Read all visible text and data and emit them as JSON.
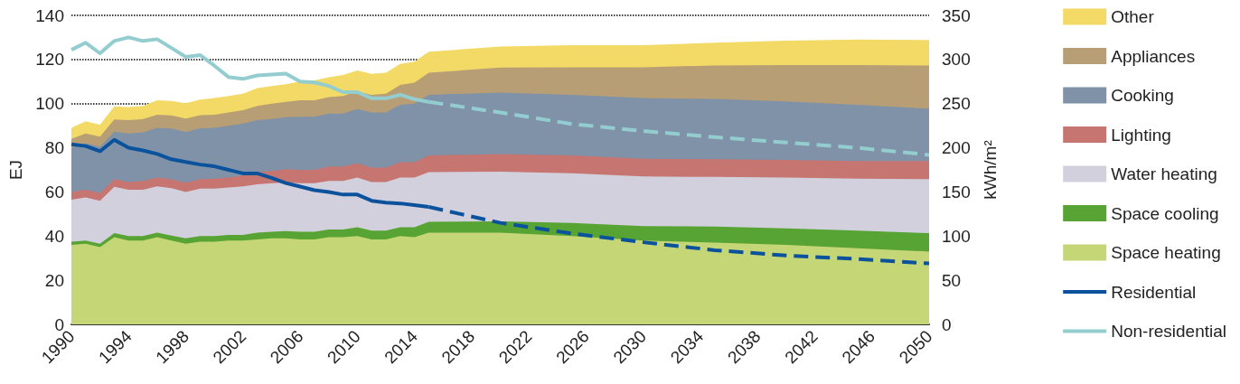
{
  "chart_data": {
    "type": "area",
    "stacked": true,
    "ylabel": "EJ",
    "y2label": "kWh/m²",
    "x": [
      1990,
      1991,
      1992,
      1993,
      1994,
      1995,
      1996,
      1997,
      1998,
      1999,
      2000,
      2001,
      2002,
      2003,
      2004,
      2005,
      2006,
      2007,
      2008,
      2009,
      2010,
      2011,
      2012,
      2013,
      2014,
      2015,
      2020,
      2025,
      2030,
      2035,
      2040,
      2045,
      2050
    ],
    "xlim": [
      1990,
      2050
    ],
    "xticks": [
      1990,
      1994,
      1998,
      2002,
      2006,
      2010,
      2014,
      2018,
      2022,
      2026,
      2030,
      2034,
      2038,
      2042,
      2046,
      2050
    ],
    "ylim": [
      0,
      140
    ],
    "yticks": [
      0,
      20,
      40,
      60,
      80,
      100,
      120,
      140
    ],
    "y2lim": [
      0,
      350
    ],
    "y2ticks": [
      0,
      50,
      100,
      150,
      200,
      250,
      300,
      350
    ],
    "grid": "y",
    "legend": "right",
    "series": [
      {
        "name": "Space heating",
        "color": "#c5d677",
        "values": [
          36,
          36.5,
          35,
          39.5,
          38,
          38,
          39.5,
          38,
          36.5,
          37.5,
          37.5,
          38,
          38,
          38.5,
          39,
          39,
          38.5,
          38.5,
          39.5,
          39.5,
          40,
          38.5,
          38.5,
          40,
          39.5,
          41.5,
          41.5,
          40,
          38,
          37,
          36,
          34.5,
          33
        ]
      },
      {
        "name": "Space cooling",
        "color": "#57a333",
        "values": [
          1.5,
          1.5,
          1.5,
          1.8,
          2,
          2,
          2,
          2.2,
          2.5,
          2.5,
          2.5,
          2.5,
          2.5,
          3,
          3,
          3.3,
          3.5,
          3.5,
          3.5,
          3.5,
          4,
          4,
          4,
          4,
          4.5,
          5,
          5.2,
          6,
          6.5,
          7.3,
          7.5,
          8,
          8.3
        ]
      },
      {
        "name": "Water heating",
        "color": "#d2d0dc",
        "values": [
          19,
          19.5,
          19.5,
          21,
          21,
          21,
          21,
          21.5,
          21,
          21.5,
          21.5,
          21.5,
          22,
          22,
          22,
          22,
          22,
          22,
          22,
          22,
          22.5,
          22,
          22,
          22.5,
          22.5,
          22.5,
          22.5,
          22.5,
          22.5,
          22.5,
          23,
          23.5,
          24.5
        ]
      },
      {
        "name": "Lighting",
        "color": "#c67571",
        "values": [
          3.5,
          3.5,
          3.5,
          3.5,
          3.5,
          4,
          4,
          4,
          4.2,
          4.3,
          4.5,
          4.5,
          5,
          5.5,
          5.5,
          6,
          6,
          6,
          6.5,
          6.5,
          6.5,
          6.5,
          6.5,
          7,
          7,
          7.5,
          8,
          8,
          8,
          8,
          8,
          8,
          8.2
        ]
      },
      {
        "name": "Cooking",
        "color": "#7f92a8",
        "values": [
          20,
          21,
          21,
          21.5,
          22,
          22,
          22.5,
          23,
          23,
          23,
          23,
          23.5,
          23.5,
          23.5,
          23.5,
          23.5,
          24,
          24,
          24,
          24,
          24.5,
          25,
          25,
          26,
          26.5,
          27.5,
          27.8,
          27.5,
          27.5,
          27.3,
          26.5,
          25.5,
          23.7
        ]
      },
      {
        "name": "Appliances",
        "color": "#b89e75",
        "values": [
          4,
          4.5,
          4.5,
          5.5,
          6,
          6,
          6,
          6,
          6,
          6,
          6,
          6,
          6,
          6.5,
          7,
          7,
          7.5,
          7.5,
          7.5,
          8,
          8,
          8,
          8.5,
          9,
          9.5,
          10,
          11.4,
          12.5,
          14,
          15.2,
          16.5,
          18,
          19.6
        ]
      },
      {
        "name": "Other",
        "color": "#f3da66",
        "values": [
          5,
          5.5,
          5.5,
          6,
          6,
          6,
          6.5,
          6.5,
          7,
          7,
          7.5,
          7.5,
          7.5,
          8,
          8,
          8,
          8.5,
          9,
          9,
          9.5,
          9.5,
          9.5,
          9.5,
          9.5,
          9.5,
          9.5,
          9.5,
          10,
          10,
          10.3,
          11,
          11.5,
          11.5
        ]
      },
      {
        "name": "Residential",
        "type": "line",
        "axis": "y2",
        "color": "#0b529d",
        "line_style": "solid",
        "x": [
          1990,
          1991,
          1992,
          1993,
          1994,
          1995,
          1996,
          1997,
          1998,
          1999,
          2000,
          2001,
          2002,
          2003,
          2004,
          2005,
          2006,
          2007,
          2008,
          2009,
          2010,
          2011,
          2012,
          2013,
          2014,
          2015
        ],
        "values": [
          204,
          202,
          196,
          209,
          200,
          197,
          193,
          187,
          184,
          181,
          179,
          175,
          171,
          171,
          166,
          160,
          156,
          152,
          150,
          147,
          147,
          140,
          138,
          137,
          135,
          133
        ]
      },
      {
        "type": "line",
        "axis": "y2",
        "color": "#0b529d",
        "line_style": "dashed",
        "x": [
          2015,
          2020,
          2025,
          2030,
          2035,
          2040,
          2045,
          2050
        ],
        "values": [
          133,
          115,
          103,
          93,
          84,
          78,
          74,
          69
        ]
      },
      {
        "name": "Non-residential",
        "type": "line",
        "axis": "y2",
        "color": "#93cdd0",
        "line_style": "solid",
        "x": [
          1990,
          1991,
          1992,
          1993,
          1994,
          1995,
          1996,
          1997,
          1998,
          1999,
          2000,
          2001,
          2002,
          2003,
          2004,
          2005,
          2006,
          2007,
          2008,
          2009,
          2010,
          2011,
          2012,
          2013,
          2014,
          2015
        ],
        "values": [
          311,
          319,
          307,
          321,
          325,
          321,
          323,
          313,
          303,
          305,
          293,
          280,
          278,
          282,
          283,
          284,
          275,
          274,
          270,
          263,
          263,
          256,
          256,
          260,
          255,
          252
        ]
      },
      {
        "type": "line",
        "axis": "y2",
        "color": "#93cdd0",
        "line_style": "dashed",
        "x": [
          2015,
          2020,
          2025,
          2030,
          2035,
          2040,
          2045,
          2050
        ],
        "values": [
          252,
          240,
          227,
          219,
          212,
          206,
          200,
          192
        ]
      }
    ]
  }
}
